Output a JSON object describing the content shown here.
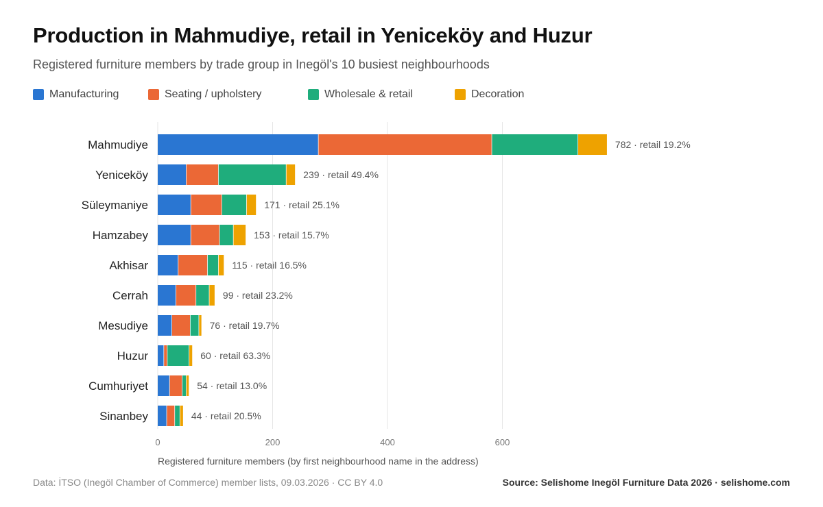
{
  "title": "Production in Mahmudiye, retail in Yeniceköy and Huzur",
  "subtitle": "Registered furniture members by trade group in Inegöl's 10 busiest neighbourhoods",
  "footer": {
    "left": "Data: İTSO (Inegöl Chamber of Commerce) member lists, 09.03.2026 · CC BY 4.0",
    "right": "Source: Selishome Inegöl Furniture Data 2026 · selishome.com"
  },
  "colors": {
    "manufacturing": "#2a76d2",
    "seating": "#eb6836",
    "wholesale": "#1fad7c",
    "decoration": "#eea200",
    "grid": "#e6e6e6"
  },
  "chart_data": {
    "type": "bar",
    "orientation": "horizontal",
    "stacked": true,
    "xlabel": "Registered furniture members (by first neighbourhood name in the address)",
    "ylabel": "",
    "xlim": [
      0,
      880
    ],
    "xticks": [
      0,
      200,
      400,
      600
    ],
    "grid": true,
    "legend_position": "top-left",
    "categories": [
      "Mahmudiye",
      "Yeniceköy",
      "Süleymaniye",
      "Hamzabey",
      "Akhisar",
      "Cerrah",
      "Mesudiye",
      "Huzur",
      "Cumhuriyet",
      "Sinanbey"
    ],
    "series": [
      {
        "name": "Manufacturing",
        "color": "#2a76d2",
        "values": [
          280,
          50,
          58,
          58,
          36,
          32,
          25,
          11,
          21,
          16
        ]
      },
      {
        "name": "Seating / upholstery",
        "color": "#eb6836",
        "values": [
          302,
          56,
          54,
          50,
          51,
          35,
          32,
          6,
          22,
          14
        ]
      },
      {
        "name": "Wholesale & retail",
        "color": "#1fad7c",
        "values": [
          150,
          118,
          43,
          24,
          19,
          23,
          15,
          38,
          7,
          9
        ]
      },
      {
        "name": "Decoration",
        "color": "#eea200",
        "values": [
          50,
          15,
          16,
          21,
          9,
          9,
          4,
          5,
          4,
          5
        ]
      }
    ],
    "totals": [
      782,
      239,
      171,
      153,
      115,
      99,
      76,
      60,
      54,
      44
    ],
    "labels": [
      "782 · retail 19.2%",
      "239 · retail 49.4%",
      "171 · retail 25.1%",
      "153 · retail 15.7%",
      "115 · retail 16.5%",
      "99 · retail 23.2%",
      "76 · retail 19.7%",
      "60 · retail 63.3%",
      "54 · retail 13.0%",
      "44 · retail 20.5%"
    ]
  }
}
